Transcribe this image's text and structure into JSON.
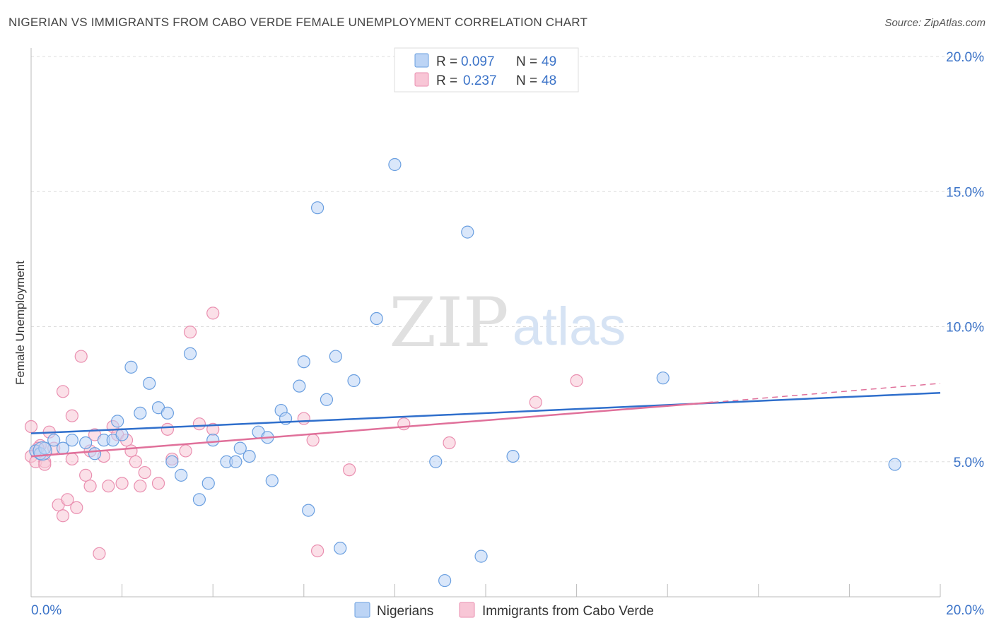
{
  "title": "NIGERIAN VS IMMIGRANTS FROM CABO VERDE FEMALE UNEMPLOYMENT CORRELATION CHART",
  "source": "Source: ZipAtlas.com",
  "watermark": {
    "zip": "ZIP",
    "atlas": "atlas"
  },
  "colors": {
    "blue": "#6a9fe0",
    "blue_fill": "#bcd4f5",
    "blue_line": "#2f6fcc",
    "pink": "#ea8fb0",
    "pink_fill": "#f8c6d6",
    "pink_line": "#e0709a",
    "tick_label": "#3b73c8",
    "grid": "#dddddd"
  },
  "chart_data": {
    "type": "scatter",
    "title": "NIGERIAN VS IMMIGRANTS FROM CABO VERDE FEMALE UNEMPLOYMENT CORRELATION CHART",
    "xlabel": "",
    "ylabel": "Female Unemployment",
    "xlim": [
      0,
      20
    ],
    "ylim": [
      0,
      20
    ],
    "x_tick_labels": [
      "0.0%",
      "20.0%"
    ],
    "y_ticks": [
      5,
      10,
      15,
      20
    ],
    "y_tick_labels": [
      "5.0%",
      "10.0%",
      "15.0%",
      "20.0%"
    ],
    "grid": true,
    "legend_position": "top-center",
    "legend": [
      {
        "r_label": "R =",
        "r_value": "0.097",
        "n_label": "N =",
        "n_value": "49"
      },
      {
        "r_label": "R =",
        "r_value": "0.237",
        "n_label": "N =",
        "n_value": "48"
      }
    ],
    "series": [
      {
        "name": "Nigerians",
        "color": "#6a9fe0",
        "trend": {
          "x0": 0,
          "y0": 6.05,
          "x1": 20,
          "y1": 7.55
        },
        "points": [
          [
            0.1,
            5.4
          ],
          [
            0.2,
            5.3
          ],
          [
            0.3,
            5.5
          ],
          [
            0.5,
            5.8
          ],
          [
            0.7,
            5.5
          ],
          [
            0.9,
            5.8
          ],
          [
            1.2,
            5.7
          ],
          [
            1.4,
            5.3
          ],
          [
            1.6,
            5.8
          ],
          [
            1.8,
            5.8
          ],
          [
            1.9,
            6.5
          ],
          [
            2.0,
            6.0
          ],
          [
            2.2,
            8.5
          ],
          [
            2.4,
            6.8
          ],
          [
            2.6,
            7.9
          ],
          [
            2.8,
            7.0
          ],
          [
            3.0,
            6.8
          ],
          [
            3.1,
            5.0
          ],
          [
            3.3,
            4.5
          ],
          [
            3.5,
            9.0
          ],
          [
            3.7,
            3.6
          ],
          [
            3.9,
            4.2
          ],
          [
            4.0,
            5.8
          ],
          [
            4.3,
            5.0
          ],
          [
            4.5,
            5.0
          ],
          [
            4.6,
            5.5
          ],
          [
            4.8,
            5.2
          ],
          [
            5.0,
            6.1
          ],
          [
            5.2,
            5.9
          ],
          [
            5.3,
            4.3
          ],
          [
            5.5,
            6.9
          ],
          [
            5.6,
            6.6
          ],
          [
            5.9,
            7.8
          ],
          [
            6.0,
            8.7
          ],
          [
            6.1,
            3.2
          ],
          [
            6.3,
            14.4
          ],
          [
            6.5,
            7.3
          ],
          [
            6.7,
            8.9
          ],
          [
            6.8,
            1.8
          ],
          [
            7.1,
            8.0
          ],
          [
            7.6,
            10.3
          ],
          [
            8.0,
            16.0
          ],
          [
            8.9,
            5.0
          ],
          [
            9.1,
            0.6
          ],
          [
            9.6,
            13.5
          ],
          [
            9.9,
            1.5
          ],
          [
            10.6,
            5.2
          ],
          [
            13.9,
            8.1
          ],
          [
            19.0,
            4.9
          ]
        ]
      },
      {
        "name": "Immigrants from Cabo Verde",
        "color": "#ea8fb0",
        "trend": {
          "x0": 0,
          "y0": 5.2,
          "x1": 15.0,
          "y1": 7.2
        },
        "trend_dashed": {
          "x0": 15.0,
          "y0": 7.2,
          "x1": 20,
          "y1": 7.9
        },
        "points": [
          [
            0.0,
            6.3
          ],
          [
            0.0,
            5.2
          ],
          [
            0.1,
            5.0
          ],
          [
            0.2,
            5.6
          ],
          [
            0.3,
            5.0
          ],
          [
            0.3,
            4.9
          ],
          [
            0.4,
            6.1
          ],
          [
            0.5,
            5.5
          ],
          [
            0.6,
            3.4
          ],
          [
            0.7,
            3.0
          ],
          [
            0.7,
            7.6
          ],
          [
            0.8,
            3.6
          ],
          [
            0.9,
            5.1
          ],
          [
            0.9,
            6.7
          ],
          [
            1.0,
            3.3
          ],
          [
            1.1,
            8.9
          ],
          [
            1.2,
            4.5
          ],
          [
            1.3,
            5.4
          ],
          [
            1.4,
            6.0
          ],
          [
            1.5,
            1.6
          ],
          [
            1.6,
            5.2
          ],
          [
            1.7,
            4.1
          ],
          [
            1.8,
            6.3
          ],
          [
            1.9,
            6.0
          ],
          [
            2.0,
            4.2
          ],
          [
            2.1,
            5.8
          ],
          [
            2.2,
            5.4
          ],
          [
            2.3,
            5.0
          ],
          [
            2.4,
            4.1
          ],
          [
            2.5,
            4.6
          ],
          [
            2.8,
            4.2
          ],
          [
            3.0,
            6.2
          ],
          [
            3.1,
            5.1
          ],
          [
            3.4,
            5.4
          ],
          [
            3.5,
            9.8
          ],
          [
            3.7,
            6.4
          ],
          [
            4.0,
            6.2
          ],
          [
            4.0,
            10.5
          ],
          [
            6.0,
            6.6
          ],
          [
            6.2,
            5.8
          ],
          [
            6.3,
            1.7
          ],
          [
            7.0,
            4.7
          ],
          [
            8.2,
            6.4
          ],
          [
            9.2,
            5.7
          ],
          [
            11.1,
            7.2
          ],
          [
            12.0,
            8.0
          ],
          [
            0.15,
            5.5
          ],
          [
            1.3,
            4.1
          ]
        ]
      }
    ]
  }
}
